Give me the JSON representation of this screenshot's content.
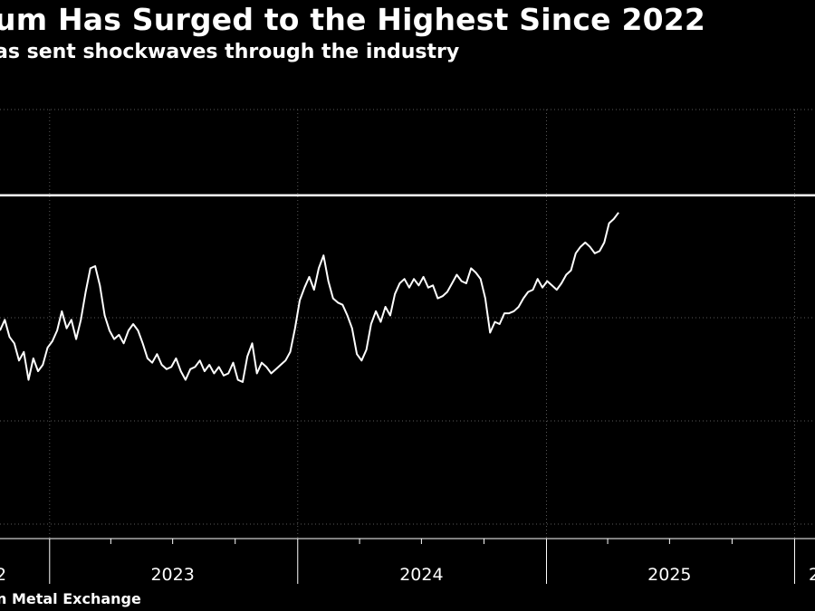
{
  "header": {
    "title": "um Has Surged to the Highest Since 2022",
    "subtitle": "as sent shockwaves through the industry"
  },
  "footer": {
    "source": "n Metal Exchange"
  },
  "colors": {
    "background": "#000000",
    "line": "#ffffff",
    "grid": "#5a5a5a"
  },
  "chart_data": {
    "type": "line",
    "title": "um Has Surged to the Highest Since 2022",
    "subtitle": "as sent shockwaves through the industry",
    "x_tick_labels": [
      "2",
      "2023",
      "2024",
      "2025",
      "2"
    ],
    "x_range": [
      "2022-10-20",
      "2026-01-31"
    ],
    "y_range": [
      0,
      100
    ],
    "y_tick_labels": [],
    "grid": true,
    "reference_line": {
      "value": 80.0
    },
    "series": [
      {
        "values": [
          [
            "2022-10-20",
            48.5
          ],
          [
            "2022-10-27",
            51.0
          ],
          [
            "2022-11-03",
            47.0
          ],
          [
            "2022-11-10",
            45.5
          ],
          [
            "2022-11-17",
            41.5
          ],
          [
            "2022-11-24",
            43.5
          ],
          [
            "2022-12-01",
            37.0
          ],
          [
            "2022-12-08",
            42.0
          ],
          [
            "2022-12-15",
            39.0
          ],
          [
            "2022-12-22",
            40.5
          ],
          [
            "2022-12-29",
            44.5
          ],
          [
            "2023-01-05",
            46.0
          ],
          [
            "2023-01-12",
            48.5
          ],
          [
            "2023-01-19",
            53.0
          ],
          [
            "2023-01-26",
            49.0
          ],
          [
            "2023-02-02",
            51.0
          ],
          [
            "2023-02-09",
            46.5
          ],
          [
            "2023-02-16",
            51.0
          ],
          [
            "2023-02-23",
            57.5
          ],
          [
            "2023-03-02",
            63.0
          ],
          [
            "2023-03-09",
            63.5
          ],
          [
            "2023-03-16",
            59.0
          ],
          [
            "2023-03-23",
            52.0
          ],
          [
            "2023-03-30",
            48.5
          ],
          [
            "2023-04-06",
            46.5
          ],
          [
            "2023-04-13",
            47.5
          ],
          [
            "2023-04-20",
            45.5
          ],
          [
            "2023-04-27",
            48.5
          ],
          [
            "2023-05-04",
            50.0
          ],
          [
            "2023-05-11",
            48.5
          ],
          [
            "2023-05-18",
            45.5
          ],
          [
            "2023-05-25",
            42.0
          ],
          [
            "2023-06-01",
            41.0
          ],
          [
            "2023-06-08",
            43.0
          ],
          [
            "2023-06-15",
            40.5
          ],
          [
            "2023-06-22",
            39.5
          ],
          [
            "2023-06-29",
            40.0
          ],
          [
            "2023-07-06",
            42.0
          ],
          [
            "2023-07-13",
            39.0
          ],
          [
            "2023-07-20",
            37.0
          ],
          [
            "2023-07-27",
            39.5
          ],
          [
            "2023-08-03",
            40.0
          ],
          [
            "2023-08-10",
            41.5
          ],
          [
            "2023-08-17",
            39.0
          ],
          [
            "2023-08-24",
            40.5
          ],
          [
            "2023-08-31",
            38.5
          ],
          [
            "2023-09-07",
            40.0
          ],
          [
            "2023-09-14",
            38.0
          ],
          [
            "2023-09-21",
            38.5
          ],
          [
            "2023-09-28",
            41.0
          ],
          [
            "2023-10-05",
            37.0
          ],
          [
            "2023-10-12",
            36.5
          ],
          [
            "2023-10-19",
            42.5
          ],
          [
            "2023-10-26",
            45.5
          ],
          [
            "2023-11-02",
            38.5
          ],
          [
            "2023-11-09",
            41.0
          ],
          [
            "2023-11-16",
            40.0
          ],
          [
            "2023-11-23",
            38.5
          ],
          [
            "2023-11-30",
            39.5
          ],
          [
            "2023-12-07",
            40.5
          ],
          [
            "2023-12-14",
            41.5
          ],
          [
            "2023-12-21",
            43.5
          ],
          [
            "2023-12-28",
            49.0
          ],
          [
            "2024-01-04",
            55.5
          ],
          [
            "2024-01-11",
            58.5
          ],
          [
            "2024-01-18",
            61.0
          ],
          [
            "2024-01-25",
            58.0
          ],
          [
            "2024-02-01",
            63.0
          ],
          [
            "2024-02-08",
            66.0
          ],
          [
            "2024-02-15",
            60.0
          ],
          [
            "2024-02-22",
            56.0
          ],
          [
            "2024-02-29",
            55.0
          ],
          [
            "2024-03-07",
            54.5
          ],
          [
            "2024-03-14",
            52.0
          ],
          [
            "2024-03-21",
            49.0
          ],
          [
            "2024-03-28",
            43.0
          ],
          [
            "2024-04-04",
            41.5
          ],
          [
            "2024-04-11",
            44.0
          ],
          [
            "2024-04-18",
            50.0
          ],
          [
            "2024-04-25",
            53.0
          ],
          [
            "2024-05-02",
            50.5
          ],
          [
            "2024-05-09",
            54.0
          ],
          [
            "2024-05-16",
            52.0
          ],
          [
            "2024-05-23",
            57.0
          ],
          [
            "2024-05-30",
            59.5
          ],
          [
            "2024-06-06",
            60.5
          ],
          [
            "2024-06-13",
            58.5
          ],
          [
            "2024-06-20",
            60.5
          ],
          [
            "2024-06-27",
            59.0
          ],
          [
            "2024-07-04",
            61.0
          ],
          [
            "2024-07-11",
            58.5
          ],
          [
            "2024-07-18",
            59.0
          ],
          [
            "2024-07-25",
            56.0
          ],
          [
            "2024-08-01",
            56.5
          ],
          [
            "2024-08-08",
            57.5
          ],
          [
            "2024-08-15",
            59.5
          ],
          [
            "2024-08-22",
            61.5
          ],
          [
            "2024-08-29",
            60.0
          ],
          [
            "2024-09-05",
            59.5
          ],
          [
            "2024-09-12",
            63.0
          ],
          [
            "2024-09-19",
            62.0
          ],
          [
            "2024-09-26",
            60.5
          ],
          [
            "2024-10-03",
            56.0
          ],
          [
            "2024-10-10",
            48.0
          ],
          [
            "2024-10-17",
            50.5
          ],
          [
            "2024-10-24",
            50.0
          ],
          [
            "2024-10-31",
            52.5
          ],
          [
            "2024-11-07",
            52.5
          ],
          [
            "2024-11-14",
            53.0
          ],
          [
            "2024-11-21",
            54.0
          ],
          [
            "2024-11-28",
            56.0
          ],
          [
            "2024-12-05",
            57.5
          ],
          [
            "2024-12-12",
            58.0
          ],
          [
            "2024-12-19",
            60.5
          ],
          [
            "2024-12-26",
            58.5
          ],
          [
            "2025-01-02",
            60.0
          ],
          [
            "2025-01-09",
            59.0
          ],
          [
            "2025-01-16",
            58.0
          ],
          [
            "2025-01-23",
            59.5
          ],
          [
            "2025-01-30",
            61.5
          ],
          [
            "2025-02-06",
            62.5
          ],
          [
            "2025-02-13",
            66.5
          ],
          [
            "2025-02-20",
            68.0
          ],
          [
            "2025-02-27",
            69.0
          ],
          [
            "2025-03-06",
            68.0
          ],
          [
            "2025-03-13",
            66.5
          ],
          [
            "2025-03-20",
            67.0
          ],
          [
            "2025-03-27",
            69.0
          ],
          [
            "2025-04-03",
            73.5
          ],
          [
            "2025-04-10",
            74.5
          ],
          [
            "2025-04-17",
            76.0
          ]
        ]
      }
    ]
  }
}
